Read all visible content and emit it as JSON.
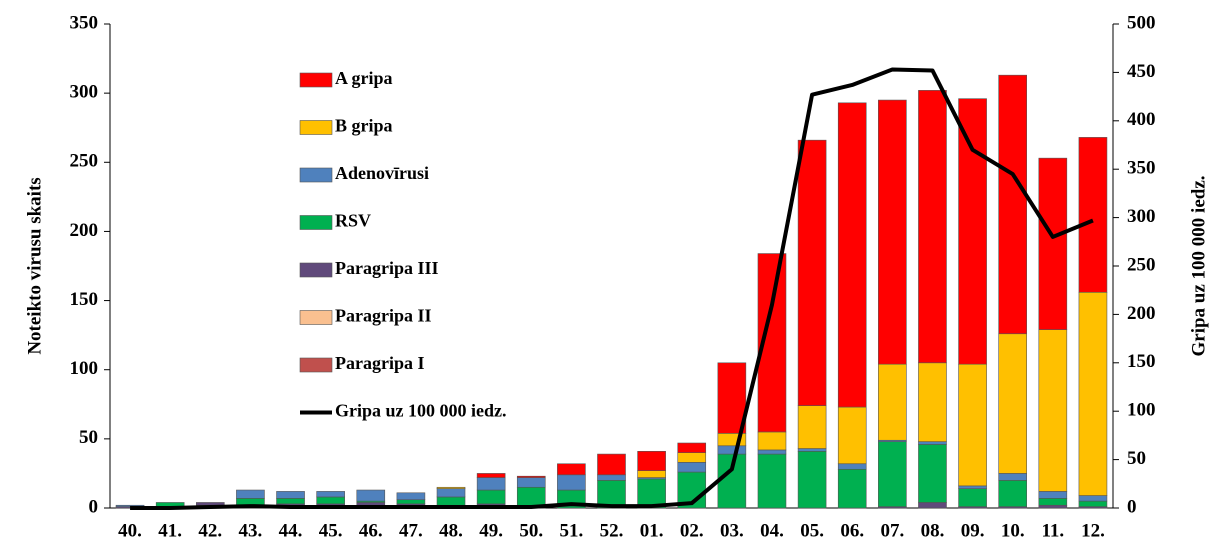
{
  "chart_data": {
    "type": "bar",
    "stacked": true,
    "y_label": "Noteikto virusu skaits",
    "y2_label": "Gripa uz 100 000 iedz.",
    "categories": [
      "40.",
      "41.",
      "42.",
      "43.",
      "44.",
      "45.",
      "46.",
      "47.",
      "48.",
      "49.",
      "50.",
      "51.",
      "52.",
      "01.",
      "02.",
      "03.",
      "04.",
      "05.",
      "06.",
      "07.",
      "08.",
      "09.",
      "10.",
      "11.",
      "12."
    ],
    "series": [
      {
        "name": "Paragripa I",
        "color": "#c0504d",
        "values": [
          0,
          0,
          2,
          0,
          0,
          0,
          0,
          0,
          0,
          0,
          0,
          0,
          0,
          0,
          0,
          0,
          0,
          0,
          0,
          0,
          0,
          0,
          0,
          0,
          0
        ]
      },
      {
        "name": "Paragripa II",
        "color": "#fac090",
        "values": [
          0,
          0,
          0,
          0,
          0,
          0,
          0,
          0,
          0,
          0,
          0,
          0,
          0,
          0,
          0,
          0,
          0,
          0,
          0,
          0,
          0,
          0,
          0,
          0,
          0
        ]
      },
      {
        "name": "Paragripa III",
        "color": "#604a7b",
        "values": [
          1,
          0,
          2,
          2,
          3,
          3,
          4,
          3,
          2,
          3,
          0,
          0,
          0,
          0,
          0,
          0,
          0,
          0,
          0,
          1,
          4,
          1,
          1,
          2,
          1
        ]
      },
      {
        "name": "RSV",
        "color": "#00b050",
        "values": [
          0,
          4,
          0,
          5,
          4,
          5,
          1,
          3,
          6,
          10,
          15,
          13,
          20,
          21,
          26,
          39,
          39,
          41,
          28,
          47,
          42,
          13,
          19,
          5,
          4
        ]
      },
      {
        "name": "Adenovīrusi",
        "color": "#4f81bd",
        "values": [
          1,
          0,
          0,
          6,
          5,
          4,
          8,
          5,
          6,
          9,
          7,
          11,
          4,
          1,
          7,
          6,
          3,
          2,
          4,
          1,
          2,
          2,
          5,
          5,
          4
        ]
      },
      {
        "name": "B gripa",
        "color": "#ffc000",
        "values": [
          0,
          0,
          0,
          0,
          0,
          0,
          0,
          0,
          1,
          0,
          0,
          0,
          0,
          5,
          7,
          9,
          13,
          31,
          41,
          55,
          57,
          88,
          101,
          117,
          147
        ]
      },
      {
        "name": "A gripa",
        "color": "#ff0000",
        "values": [
          0,
          0,
          0,
          0,
          0,
          0,
          0,
          0,
          0,
          3,
          1,
          8,
          15,
          14,
          7,
          51,
          129,
          192,
          220,
          191,
          197,
          192,
          187,
          124,
          112
        ]
      },
      {
        "name": "Gripa uz 100 000 iedz.",
        "color": "#000000",
        "axis": "y2",
        "values": [
          0,
          0,
          1,
          2,
          1,
          1,
          1,
          1,
          1,
          1,
          1,
          4,
          2,
          2,
          5,
          40,
          210,
          427,
          437,
          453,
          452,
          370,
          345,
          280,
          297
        ]
      }
    ],
    "ylim": [
      0,
      350
    ],
    "yticks": [
      0,
      50,
      100,
      150,
      200,
      250,
      300,
      350
    ],
    "y2lim": [
      0,
      500
    ],
    "y2ticks": [
      0,
      50,
      100,
      150,
      200,
      250,
      300,
      350,
      400,
      450,
      500
    ]
  }
}
